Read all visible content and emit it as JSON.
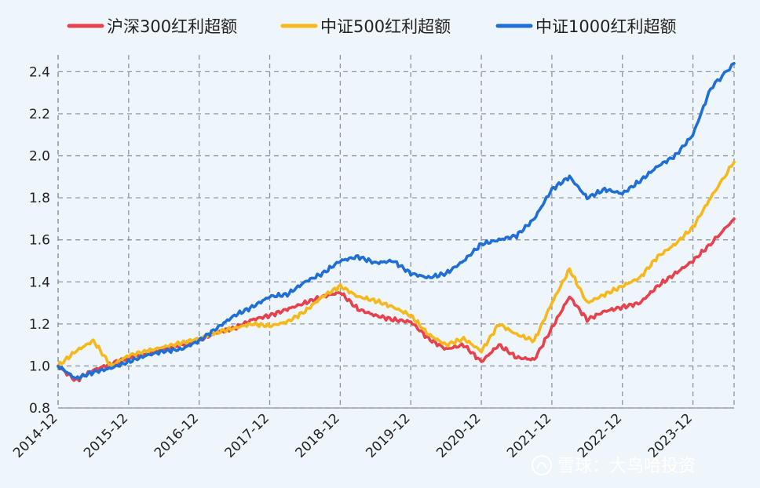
{
  "chart_data": {
    "type": "line",
    "title": "",
    "xlabel": "",
    "ylabel": "",
    "x_tick_labels": [
      "2014-12",
      "2015-12",
      "2016-12",
      "2017-12",
      "2018-12",
      "2019-12",
      "2020-12",
      "2021-12",
      "2022-12",
      "2023-12"
    ],
    "y_ticks": [
      0.8,
      1.0,
      1.2,
      1.4,
      1.6,
      1.8,
      2.0,
      2.2,
      2.4
    ],
    "ylim": [
      0.8,
      2.45
    ],
    "x_range": [
      "2014-12",
      "2024-07"
    ],
    "grid": true,
    "legend": "top",
    "x": [
      "2014-12",
      "2015-03",
      "2015-06",
      "2015-09",
      "2015-12",
      "2016-03",
      "2016-06",
      "2016-09",
      "2016-12",
      "2017-03",
      "2017-06",
      "2017-09",
      "2017-12",
      "2018-03",
      "2018-06",
      "2018-09",
      "2018-12",
      "2019-03",
      "2019-06",
      "2019-09",
      "2019-12",
      "2020-03",
      "2020-06",
      "2020-09",
      "2020-12",
      "2021-03",
      "2021-06",
      "2021-09",
      "2021-12",
      "2022-03",
      "2022-06",
      "2022-09",
      "2022-12",
      "2023-03",
      "2023-06",
      "2023-09",
      "2023-12",
      "2024-03",
      "2024-07"
    ],
    "series": [
      {
        "name": "沪深300红利超额",
        "color": "#e8414e",
        "values": [
          1.0,
          0.93,
          0.98,
          1.01,
          1.04,
          1.06,
          1.08,
          1.1,
          1.12,
          1.16,
          1.18,
          1.22,
          1.24,
          1.27,
          1.3,
          1.33,
          1.35,
          1.27,
          1.24,
          1.22,
          1.21,
          1.13,
          1.08,
          1.1,
          1.02,
          1.1,
          1.04,
          1.03,
          1.18,
          1.33,
          1.22,
          1.26,
          1.28,
          1.3,
          1.38,
          1.44,
          1.5,
          1.58,
          1.7
        ]
      },
      {
        "name": "中证500红利超额",
        "color": "#f7b81c",
        "values": [
          1.0,
          1.07,
          1.12,
          1.0,
          1.05,
          1.07,
          1.09,
          1.11,
          1.13,
          1.16,
          1.18,
          1.2,
          1.19,
          1.21,
          1.26,
          1.33,
          1.38,
          1.33,
          1.31,
          1.28,
          1.24,
          1.15,
          1.1,
          1.13,
          1.07,
          1.2,
          1.15,
          1.12,
          1.3,
          1.46,
          1.3,
          1.34,
          1.38,
          1.42,
          1.52,
          1.58,
          1.66,
          1.8,
          1.97
        ]
      },
      {
        "name": "中证1000红利超额",
        "color": "#1f6fd6",
        "values": [
          1.0,
          0.94,
          0.97,
          0.99,
          1.02,
          1.05,
          1.07,
          1.08,
          1.12,
          1.18,
          1.24,
          1.28,
          1.33,
          1.34,
          1.4,
          1.44,
          1.5,
          1.52,
          1.49,
          1.5,
          1.44,
          1.42,
          1.44,
          1.5,
          1.58,
          1.6,
          1.62,
          1.7,
          1.84,
          1.9,
          1.8,
          1.84,
          1.82,
          1.88,
          1.95,
          2.0,
          2.1,
          2.32,
          2.44
        ]
      }
    ]
  },
  "watermark": {
    "icon": "xueqiu-logo-icon",
    "text": "雪球：大鸟哈投资"
  }
}
